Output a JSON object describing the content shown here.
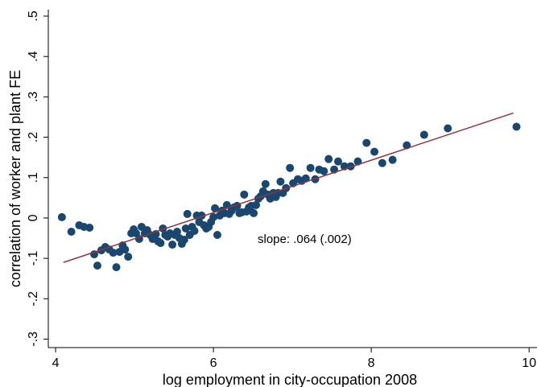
{
  "chart_data": {
    "type": "scatter",
    "x_label": "log employment in city-occupation 2008",
    "y_label": "correlation of worker and plant FE",
    "annotation": "slope: .064 (.002)",
    "color": "#1a476f",
    "x": [
      4.08,
      4.2,
      4.3,
      4.36,
      4.43,
      4.49,
      4.53,
      4.58,
      4.63,
      4.68,
      4.73,
      4.77,
      4.81,
      4.85,
      4.88,
      4.92,
      4.96,
      4.99,
      5.02,
      5.06,
      5.09,
      5.13,
      5.16,
      5.2,
      5.23,
      5.27,
      5.3,
      5.33,
      5.36,
      5.39,
      5.42,
      5.45,
      5.48,
      5.51,
      5.54,
      5.57,
      5.6,
      5.63,
      5.65,
      5.67,
      5.7,
      5.73,
      5.76,
      5.79,
      5.82,
      5.85,
      5.88,
      5.91,
      5.94,
      5.97,
      6.0,
      6.02,
      6.05,
      6.08,
      6.11,
      6.14,
      6.17,
      6.2,
      6.23,
      6.26,
      6.3,
      6.33,
      6.36,
      6.39,
      6.42,
      6.45,
      6.48,
      6.51,
      6.54,
      6.57,
      6.6,
      6.63,
      6.66,
      6.69,
      6.72,
      6.76,
      6.79,
      6.82,
      6.85,
      6.88,
      6.92,
      6.97,
      7.01,
      7.07,
      7.12,
      7.17,
      7.23,
      7.29,
      7.34,
      7.4,
      7.46,
      7.53,
      7.58,
      7.66,
      7.74,
      7.83,
      7.94,
      8.04,
      8.14,
      8.27,
      8.45,
      8.67,
      8.97,
      9.84
    ],
    "values": [
      0.002,
      -0.034,
      -0.018,
      -0.022,
      -0.024,
      -0.09,
      -0.118,
      -0.08,
      -0.072,
      -0.078,
      -0.086,
      -0.122,
      -0.084,
      -0.068,
      -0.078,
      -0.096,
      -0.038,
      -0.028,
      -0.038,
      -0.052,
      -0.022,
      -0.038,
      -0.03,
      -0.042,
      -0.052,
      -0.04,
      -0.058,
      -0.062,
      -0.026,
      -0.042,
      -0.046,
      -0.038,
      -0.066,
      -0.042,
      -0.034,
      -0.05,
      -0.064,
      -0.054,
      -0.026,
      0.01,
      -0.042,
      -0.022,
      -0.032,
      0.006,
      -0.01,
      0.006,
      -0.018,
      -0.026,
      -0.022,
      -0.01,
      0.002,
      0.024,
      -0.042,
      0.006,
      0.018,
      0.012,
      0.032,
      0.01,
      0.018,
      0.026,
      0.03,
      0.012,
      0.014,
      0.058,
      0.016,
      0.026,
      0.03,
      0.012,
      0.032,
      0.048,
      0.054,
      0.066,
      0.084,
      0.058,
      0.048,
      0.062,
      0.052,
      0.062,
      0.09,
      0.062,
      0.074,
      0.124,
      0.086,
      0.096,
      0.092,
      0.098,
      0.124,
      0.096,
      0.12,
      0.116,
      0.146,
      0.12,
      0.14,
      0.128,
      0.128,
      0.14,
      0.186,
      0.164,
      0.136,
      0.144,
      0.18,
      0.206,
      0.222,
      0.226
    ],
    "fit": {
      "color": "#90353b",
      "x": [
        4.1,
        9.8
      ],
      "values": [
        -0.11,
        0.26
      ]
    },
    "xlim": [
      3.908,
      10.1
    ],
    "ylim": [
      -0.321,
      0.516
    ],
    "xticks": [
      4,
      6,
      8,
      10
    ],
    "yticks": [
      {
        "value": 0.5,
        "label": ".5"
      },
      {
        "value": 0.4,
        "label": ".4"
      },
      {
        "value": 0.3,
        "label": ".3"
      },
      {
        "value": 0.2,
        "label": ".2"
      },
      {
        "value": 0.1,
        "label": ".1"
      },
      0,
      {
        "value": -0.1,
        "label": "-.1"
      },
      {
        "value": -0.2,
        "label": "-.2"
      },
      {
        "value": -0.3,
        "label": "-.3"
      }
    ]
  }
}
